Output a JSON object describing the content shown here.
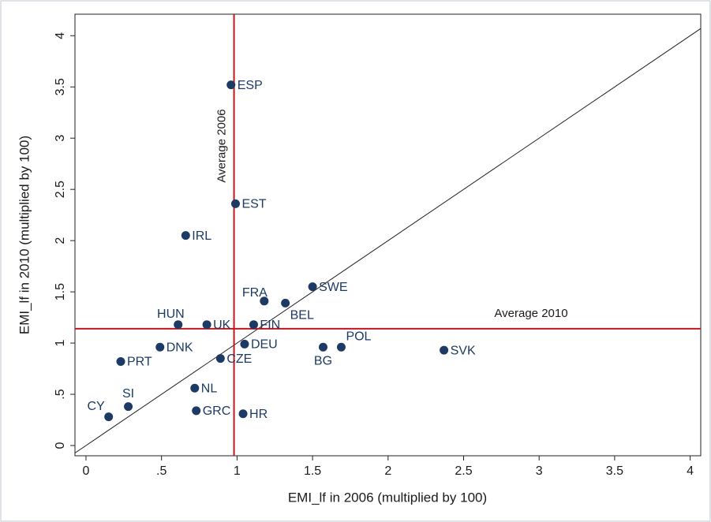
{
  "chart_data": {
    "type": "scatter",
    "x_label": "EMI_lf in 2006 (multiplied by 100)",
    "y_label": "EMI_lf in 2010 (multiplied by 100)",
    "xlim": [
      -0.073,
      4.07
    ],
    "ylim": [
      -0.1,
      4.21
    ],
    "xticks": [
      0,
      {
        "value": 0.5,
        "label": ".5"
      },
      1,
      1.5,
      2,
      2.5,
      3,
      3.5,
      4
    ],
    "yticks": [
      0,
      {
        "value": 0.5,
        "label": ".5"
      },
      1,
      1.5,
      2,
      2.5,
      3,
      3.5,
      4
    ],
    "color": "#1c3a64",
    "point_labels": [
      "ESP",
      "EST",
      "IRL",
      "SWE",
      "FRA",
      "BEL",
      "HUN",
      "UK",
      "FIN",
      "DEU",
      "DNK",
      "PRT",
      "CZE",
      "BG",
      "POL",
      "SVK",
      "NL",
      "SI",
      "CY",
      "GRC",
      "HR"
    ],
    "x": [
      0.96,
      0.99,
      0.66,
      1.5,
      1.18,
      1.32,
      0.61,
      0.8,
      1.11,
      1.05,
      0.49,
      0.23,
      0.89,
      1.57,
      1.69,
      2.37,
      0.72,
      0.28,
      0.15,
      0.73,
      1.04
    ],
    "y": [
      3.52,
      2.36,
      2.05,
      1.55,
      1.41,
      1.39,
      1.18,
      1.18,
      1.18,
      0.99,
      0.96,
      0.82,
      0.85,
      0.96,
      0.96,
      0.93,
      0.56,
      0.38,
      0.28,
      0.34,
      0.31
    ],
    "identity_line": true,
    "reference_color": "#c4161c",
    "reference_lines": [
      {
        "axis": "x",
        "value": 0.98,
        "label": "Average 2006"
      },
      {
        "axis": "y",
        "value": 1.14,
        "label": "Average 2010"
      }
    ]
  }
}
